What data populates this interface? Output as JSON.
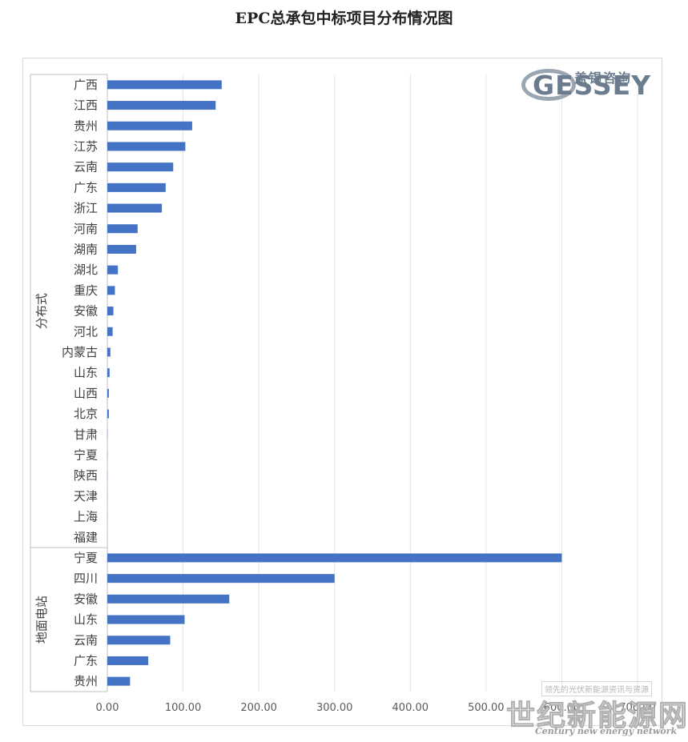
{
  "chart_data": {
    "type": "bar",
    "orientation": "horizontal",
    "title": "EPC总承包中标项目分布情况图",
    "xlim": [
      0,
      700
    ],
    "x_ticks": [
      "0.00",
      "100.00",
      "200.00",
      "300.00",
      "400.00",
      "500.00",
      "600.00",
      "700.00"
    ],
    "grid": "vertical",
    "legend": "none",
    "bar_color": "#4472C4",
    "groups": [
      {
        "name": "分布式",
        "categories": [
          "广西",
          "江西",
          "贵州",
          "江苏",
          "云南",
          "广东",
          "浙江",
          "河南",
          "湖南",
          "湖北",
          "重庆",
          "安徽",
          "河北",
          "内蒙古",
          "山东",
          "山西",
          "北京",
          "甘肃",
          "宁夏",
          "陕西",
          "天津",
          "上海",
          "福建"
        ],
        "values": [
          151,
          143,
          112,
          103,
          87,
          77,
          72,
          40,
          38,
          14,
          10,
          8,
          7,
          4,
          3,
          2,
          2,
          0.3,
          0.2,
          0.2,
          0.1,
          0.1,
          0.1
        ]
      },
      {
        "name": "地面电站",
        "categories": [
          "宁夏",
          "四川",
          "安徽",
          "山东",
          "云南",
          "广东",
          "贵州"
        ],
        "values": [
          600,
          300,
          161,
          102,
          83,
          54,
          30
        ]
      }
    ]
  },
  "logo": {
    "letters": "GESSEY",
    "name_cn": "盖锡咨询"
  },
  "watermark": {
    "top_text": "领先的光伏新能源资讯与资源",
    "main": "世纪新能源网",
    "sub": "Century new energy network"
  }
}
